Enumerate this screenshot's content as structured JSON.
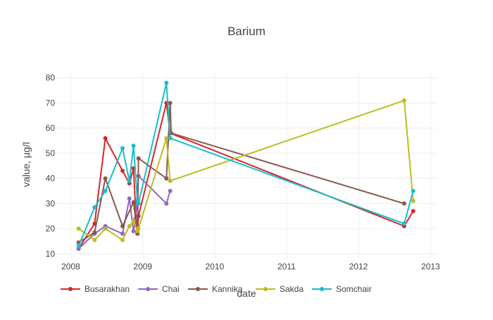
{
  "chart_data": {
    "type": "line",
    "title": "Barium",
    "xlabel": "date",
    "ylabel": "value, µg/l",
    "xlim": [
      "2007-10-20",
      "2013-02-01"
    ],
    "ylim": [
      8,
      83
    ],
    "x_ticks": [
      {
        "date": "2008-01-01",
        "label": "2008"
      },
      {
        "date": "2009-01-01",
        "label": "2009"
      },
      {
        "date": "2010-01-01",
        "label": "2010"
      },
      {
        "date": "2011-01-01",
        "label": "2011"
      },
      {
        "date": "2012-01-01",
        "label": "2012"
      },
      {
        "date": "2013-01-01",
        "label": "2013"
      }
    ],
    "y_ticks": [
      10,
      20,
      30,
      40,
      50,
      60,
      70,
      80
    ],
    "grid": true,
    "legend_position": "bottom",
    "series": [
      {
        "name": "Busarakhan",
        "color": "#d62728",
        "points": [
          [
            "2008-02-10",
            12
          ],
          [
            "2008-05-01",
            22
          ],
          [
            "2008-06-25",
            56
          ],
          [
            "2008-09-20",
            43
          ],
          [
            "2008-10-25",
            38
          ],
          [
            "2008-11-15",
            44
          ],
          [
            "2008-11-25",
            28
          ],
          [
            "2008-12-05",
            18
          ],
          [
            "2008-12-10",
            25
          ],
          [
            "2009-05-01",
            70
          ],
          [
            "2009-05-20",
            58
          ],
          [
            "2012-08-20",
            21
          ],
          [
            "2012-10-05",
            27
          ]
        ]
      },
      {
        "name": "Chai",
        "color": "#9467bd",
        "points": [
          [
            "2008-02-10",
            12
          ],
          [
            "2008-05-01",
            18
          ],
          [
            "2008-06-25",
            21
          ],
          [
            "2008-09-20",
            18
          ],
          [
            "2008-10-25",
            32
          ],
          [
            "2008-11-15",
            19
          ],
          [
            "2008-11-25",
            24
          ],
          [
            "2008-12-10",
            41
          ],
          [
            "2009-05-01",
            30
          ],
          [
            "2009-05-20",
            35
          ]
        ]
      },
      {
        "name": "Kannika",
        "color": "#8c564b",
        "points": [
          [
            "2008-02-10",
            14.5
          ],
          [
            "2008-05-01",
            18.5
          ],
          [
            "2008-06-25",
            40
          ],
          [
            "2008-09-20",
            21
          ],
          [
            "2008-11-15",
            30.5
          ],
          [
            "2008-12-05",
            18
          ],
          [
            "2008-12-10",
            48
          ],
          [
            "2009-05-01",
            40
          ],
          [
            "2009-05-20",
            70
          ],
          [
            "2009-05-25",
            58
          ],
          [
            "2012-08-20",
            30
          ]
        ]
      },
      {
        "name": "Sakda",
        "color": "#bcbd22",
        "points": [
          [
            "2008-02-10",
            20
          ],
          [
            "2008-05-01",
            15.5
          ],
          [
            "2008-06-25",
            20
          ],
          [
            "2008-09-20",
            15.5
          ],
          [
            "2008-10-25",
            21
          ],
          [
            "2008-11-15",
            23
          ],
          [
            "2008-12-05",
            19
          ],
          [
            "2008-12-10",
            20
          ],
          [
            "2009-05-01",
            56
          ],
          [
            "2009-05-20",
            39
          ],
          [
            "2012-08-20",
            71
          ],
          [
            "2012-10-05",
            31
          ]
        ]
      },
      {
        "name": "Somchair",
        "color": "#17becf",
        "points": [
          [
            "2008-02-10",
            13
          ],
          [
            "2008-05-01",
            28.5
          ],
          [
            "2008-06-25",
            35
          ],
          [
            "2008-09-20",
            52
          ],
          [
            "2008-10-25",
            39
          ],
          [
            "2008-11-15",
            53
          ],
          [
            "2008-12-05",
            31
          ],
          [
            "2008-12-10",
            30
          ],
          [
            "2009-05-01",
            78
          ],
          [
            "2009-05-20",
            56
          ],
          [
            "2012-08-20",
            22
          ],
          [
            "2012-10-05",
            35
          ]
        ]
      }
    ]
  }
}
